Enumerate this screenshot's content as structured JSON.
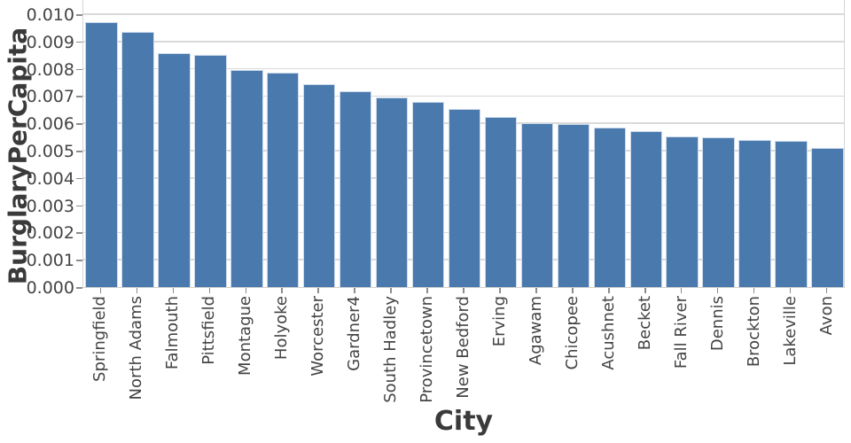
{
  "chart_data": {
    "type": "bar",
    "title": "",
    "xlabel": "City",
    "ylabel": "BurglaryPerCapita",
    "categories": [
      "Springfield",
      "North Adams",
      "Falmouth",
      "Pittsfield",
      "Montague",
      "Holyoke",
      "Worcester",
      "Gardner4",
      "South Hadley",
      "Provincetown",
      "New Bedford",
      "Erving",
      "Agawam",
      "Chicopee",
      "Acushnet",
      "Becket",
      "Fall River",
      "Dennis",
      "Brockton",
      "Lakeville",
      "Avon"
    ],
    "values": [
      0.00972,
      0.00935,
      0.00857,
      0.00852,
      0.00795,
      0.00786,
      0.00744,
      0.00718,
      0.00695,
      0.00679,
      0.00654,
      0.00623,
      0.00601,
      0.00598,
      0.00584,
      0.0057,
      0.00552,
      0.00549,
      0.0054,
      0.00535,
      0.00511
    ],
    "ylim": [
      0,
      0.0105
    ],
    "ytick_step": 0.001,
    "ytick_labels": [
      "0.000",
      "0.001",
      "0.002",
      "0.003",
      "0.004",
      "0.005",
      "0.006",
      "0.007",
      "0.008",
      "0.009",
      "0.010"
    ],
    "grid": "horizontal",
    "legend": "none",
    "bar_color": "#4A79AD",
    "bar_edge_color": "#CCD9EA",
    "grid_color": "#D9D9D9",
    "tick_mark_color": "#8C8C8C",
    "tick_label_color": "#444444",
    "axis_title_color": "#3A3A3A"
  }
}
